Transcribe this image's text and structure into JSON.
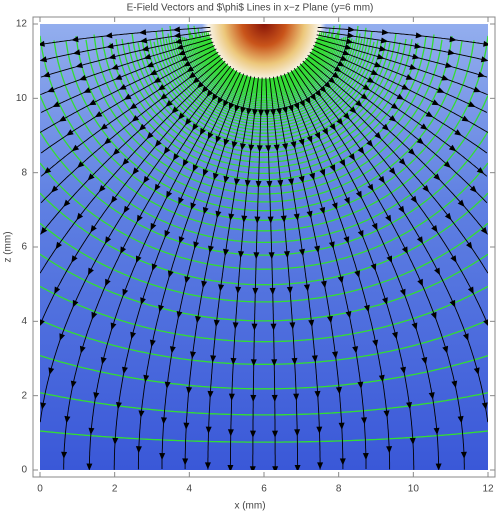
{
  "chart_data": {
    "type": "streamplot",
    "title": "E-Field Vectors and $\\phi$ Lines in x−z Plane (y=6 mm)",
    "x_label": "x (mm)",
    "y_label": "z (mm)",
    "xlim": [
      0,
      12
    ],
    "ylim": [
      0,
      12
    ],
    "xticks": [
      0,
      2,
      4,
      6,
      8,
      10,
      12
    ],
    "yticks": [
      0,
      2,
      4,
      6,
      8,
      10,
      12
    ],
    "stream_color": "#000000",
    "contour_color": "#33dd33"
  }
}
